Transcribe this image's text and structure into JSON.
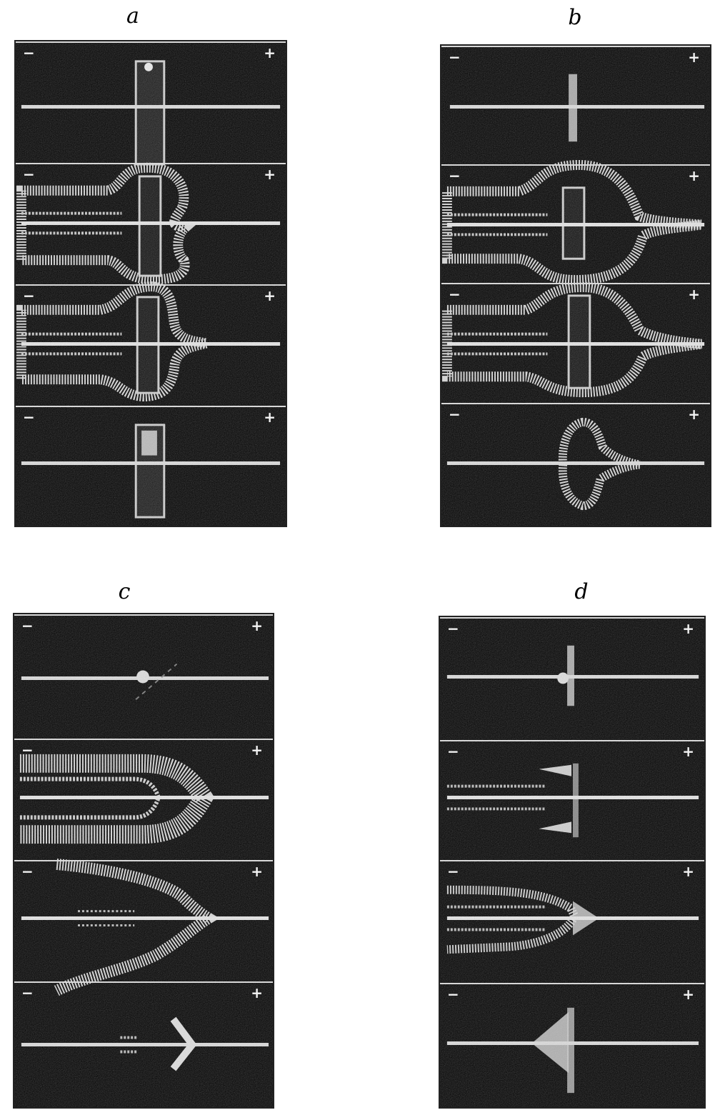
{
  "panels": [
    {
      "label": "a",
      "strips": [
        {
          "minus": "−",
          "plus": "+"
        },
        {
          "minus": "−",
          "plus": "+"
        },
        {
          "minus": "−",
          "plus": "+"
        },
        {
          "minus": "−",
          "plus": "+"
        }
      ]
    },
    {
      "label": "b",
      "strips": [
        {
          "minus": "−",
          "plus": "+"
        },
        {
          "minus": "−",
          "plus": "+"
        },
        {
          "minus": "−",
          "plus": "+"
        },
        {
          "minus": "−",
          "plus": "+"
        }
      ]
    },
    {
      "label": "c",
      "strips": [
        {
          "minus": "−",
          "plus": "+"
        },
        {
          "minus": "−",
          "plus": "+"
        },
        {
          "minus": "−",
          "plus": "+"
        },
        {
          "minus": "−",
          "plus": "+"
        }
      ]
    },
    {
      "label": "d",
      "strips": [
        {
          "minus": "−",
          "plus": "+"
        },
        {
          "minus": "−",
          "plus": "+"
        },
        {
          "minus": "−",
          "plus": "+"
        },
        {
          "minus": "−",
          "plus": "+"
        }
      ]
    }
  ]
}
